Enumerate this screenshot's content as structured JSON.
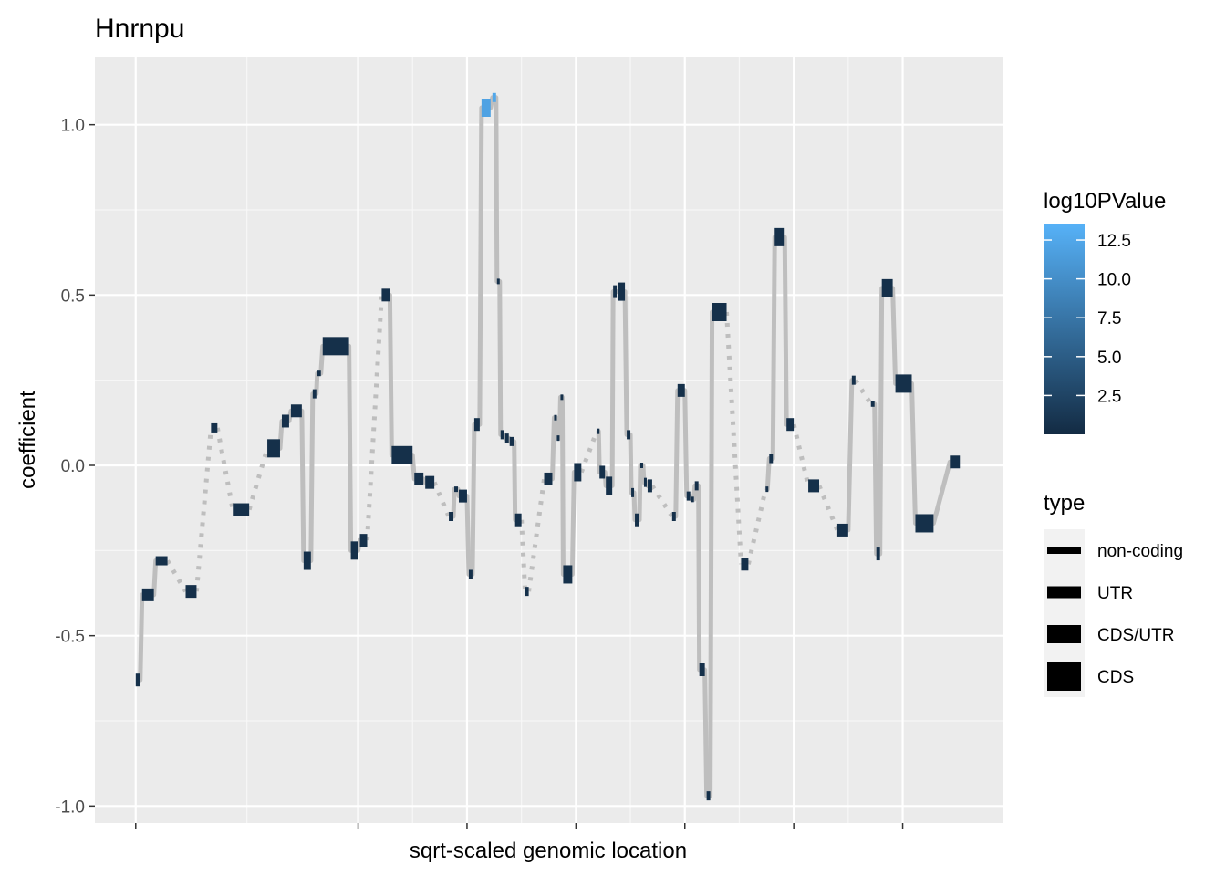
{
  "chart_data": {
    "type": "line",
    "title": "Hnrnpu",
    "xlabel": "sqrt-scaled genomic location",
    "ylabel": "coefficient",
    "ylim": [
      -1.05,
      1.2
    ],
    "y_ticks": [
      {
        "value": 1.0,
        "label": "1.0"
      },
      {
        "value": 0.5,
        "label": "0.5"
      },
      {
        "value": 0.0,
        "label": "0.0"
      },
      {
        "value": -0.5,
        "label": "-0.5"
      },
      {
        "value": -1.0,
        "label": "-1.0"
      }
    ],
    "x_range": [
      0,
      1
    ],
    "x_ticks_unlabeled": [
      0.045,
      0.29,
      0.41,
      0.53,
      0.65,
      0.77,
      0.89
    ],
    "grid": true,
    "colors": {
      "panel_background": "#ebebeb",
      "grid": "#ffffff",
      "connector": "#bebebe",
      "low_pvalue": "#132b43",
      "high_pvalue": "#56b1f7"
    },
    "legend_color": {
      "title": "log10PValue",
      "placement": "right",
      "min": 0,
      "max": 13.5,
      "ticks": [
        {
          "value": 12.5,
          "label": "12.5"
        },
        {
          "value": 10.0,
          "label": "10.0"
        },
        {
          "value": 7.5,
          "label": "7.5"
        },
        {
          "value": 5.0,
          "label": "5.0"
        },
        {
          "value": 2.5,
          "label": "2.5"
        }
      ]
    },
    "legend_type": {
      "title": "type",
      "placement": "right",
      "entries": [
        {
          "label": "non-coding",
          "weight": 0.35
        },
        {
          "label": "UTR",
          "weight": 0.55
        },
        {
          "label": "CDS/UTR",
          "weight": 0.75
        },
        {
          "label": "CDS",
          "weight": 1.0
        }
      ]
    },
    "segments": [
      {
        "x0": 0.045,
        "x1": 0.05,
        "y": -0.63,
        "p": 0.5,
        "type": "CDS/UTR",
        "link": "solid"
      },
      {
        "x0": 0.052,
        "x1": 0.065,
        "y": -0.38,
        "p": 0.5,
        "type": "CDS/UTR",
        "link": "solid"
      },
      {
        "x0": 0.067,
        "x1": 0.08,
        "y": -0.28,
        "p": 0.5,
        "type": "UTR",
        "link": "dotted"
      },
      {
        "x0": 0.1,
        "x1": 0.112,
        "y": -0.37,
        "p": 0.5,
        "type": "CDS/UTR",
        "link": "dotted"
      },
      {
        "x0": 0.128,
        "x1": 0.135,
        "y": 0.11,
        "p": 0.5,
        "type": "UTR",
        "link": "dotted"
      },
      {
        "x0": 0.152,
        "x1": 0.17,
        "y": -0.13,
        "p": 0.5,
        "type": "CDS/UTR",
        "link": "dotted"
      },
      {
        "x0": 0.19,
        "x1": 0.204,
        "y": 0.05,
        "p": 0.5,
        "type": "CDS",
        "link": "solid"
      },
      {
        "x0": 0.206,
        "x1": 0.214,
        "y": 0.13,
        "p": 0.5,
        "type": "CDS/UTR",
        "link": "solid"
      },
      {
        "x0": 0.216,
        "x1": 0.228,
        "y": 0.16,
        "p": 0.5,
        "type": "CDS/UTR",
        "link": "solid"
      },
      {
        "x0": 0.23,
        "x1": 0.238,
        "y": -0.28,
        "p": 0.5,
        "type": "CDS",
        "link": "solid"
      },
      {
        "x0": 0.24,
        "x1": 0.244,
        "y": 0.21,
        "p": 0.5,
        "type": "UTR",
        "link": "solid"
      },
      {
        "x0": 0.245,
        "x1": 0.249,
        "y": 0.27,
        "p": 0.5,
        "type": "non-coding",
        "link": "solid"
      },
      {
        "x0": 0.251,
        "x1": 0.28,
        "y": 0.35,
        "p": 0.5,
        "type": "CDS",
        "link": "solid"
      },
      {
        "x0": 0.282,
        "x1": 0.29,
        "y": -0.25,
        "p": 0.5,
        "type": "CDS",
        "link": "solid"
      },
      {
        "x0": 0.292,
        "x1": 0.3,
        "y": -0.22,
        "p": 0.5,
        "type": "CDS/UTR",
        "link": "dotted"
      },
      {
        "x0": 0.316,
        "x1": 0.325,
        "y": 0.5,
        "p": 0.5,
        "type": "CDS/UTR",
        "link": "solid"
      },
      {
        "x0": 0.327,
        "x1": 0.35,
        "y": 0.03,
        "p": 0.5,
        "type": "CDS",
        "link": "solid"
      },
      {
        "x0": 0.352,
        "x1": 0.362,
        "y": -0.04,
        "p": 0.5,
        "type": "CDS/UTR",
        "link": "solid"
      },
      {
        "x0": 0.364,
        "x1": 0.374,
        "y": -0.05,
        "p": 0.5,
        "type": "CDS/UTR",
        "link": "dotted"
      },
      {
        "x0": 0.39,
        "x1": 0.395,
        "y": -0.15,
        "p": 0.5,
        "type": "UTR",
        "link": "solid"
      },
      {
        "x0": 0.396,
        "x1": 0.4,
        "y": -0.07,
        "p": 0.5,
        "type": "non-coding",
        "link": "solid"
      },
      {
        "x0": 0.401,
        "x1": 0.41,
        "y": -0.09,
        "p": 0.5,
        "type": "CDS/UTR",
        "link": "solid"
      },
      {
        "x0": 0.412,
        "x1": 0.416,
        "y": -0.32,
        "p": 0.5,
        "type": "UTR",
        "link": "solid"
      },
      {
        "x0": 0.418,
        "x1": 0.424,
        "y": 0.12,
        "p": 0.5,
        "type": "CDS/UTR",
        "link": "solid"
      },
      {
        "x0": 0.426,
        "x1": 0.436,
        "y": 1.05,
        "p": 12.0,
        "type": "CDS",
        "link": "solid"
      },
      {
        "x0": 0.438,
        "x1": 0.442,
        "y": 1.08,
        "p": 12.5,
        "type": "UTR",
        "link": "solid"
      },
      {
        "x0": 0.443,
        "x1": 0.446,
        "y": 0.54,
        "p": 0.5,
        "type": "non-coding",
        "link": "solid"
      },
      {
        "x0": 0.447,
        "x1": 0.451,
        "y": 0.09,
        "p": 0.5,
        "type": "UTR",
        "link": "solid"
      },
      {
        "x0": 0.452,
        "x1": 0.456,
        "y": 0.08,
        "p": 0.5,
        "type": "UTR",
        "link": "solid"
      },
      {
        "x0": 0.457,
        "x1": 0.462,
        "y": 0.07,
        "p": 0.5,
        "type": "UTR",
        "link": "solid"
      },
      {
        "x0": 0.463,
        "x1": 0.47,
        "y": -0.16,
        "p": 0.5,
        "type": "CDS/UTR",
        "link": "dotted"
      },
      {
        "x0": 0.474,
        "x1": 0.478,
        "y": -0.37,
        "p": 0.5,
        "type": "UTR",
        "link": "dotted"
      },
      {
        "x0": 0.495,
        "x1": 0.504,
        "y": -0.04,
        "p": 0.5,
        "type": "CDS/UTR",
        "link": "solid"
      },
      {
        "x0": 0.506,
        "x1": 0.508,
        "y": 0.14,
        "p": 0.5,
        "type": "non-coding",
        "link": "solid"
      },
      {
        "x0": 0.509,
        "x1": 0.512,
        "y": 0.08,
        "p": 0.5,
        "type": "non-coding",
        "link": "solid"
      },
      {
        "x0": 0.513,
        "x1": 0.515,
        "y": 0.2,
        "p": 0.5,
        "type": "non-coding",
        "link": "solid"
      },
      {
        "x0": 0.516,
        "x1": 0.526,
        "y": -0.32,
        "p": 0.5,
        "type": "CDS",
        "link": "solid"
      },
      {
        "x0": 0.528,
        "x1": 0.536,
        "y": -0.02,
        "p": 0.5,
        "type": "CDS",
        "link": "dotted"
      },
      {
        "x0": 0.553,
        "x1": 0.555,
        "y": 0.1,
        "p": 0.5,
        "type": "non-coding",
        "link": "solid"
      },
      {
        "x0": 0.556,
        "x1": 0.562,
        "y": -0.02,
        "p": 0.5,
        "type": "CDS/UTR",
        "link": "solid"
      },
      {
        "x0": 0.563,
        "x1": 0.57,
        "y": -0.06,
        "p": 0.5,
        "type": "CDS",
        "link": "solid"
      },
      {
        "x0": 0.571,
        "x1": 0.575,
        "y": 0.51,
        "p": 0.5,
        "type": "CDS/UTR",
        "link": "solid"
      },
      {
        "x0": 0.576,
        "x1": 0.584,
        "y": 0.51,
        "p": 0.5,
        "type": "CDS",
        "link": "solid"
      },
      {
        "x0": 0.586,
        "x1": 0.59,
        "y": 0.09,
        "p": 0.5,
        "type": "UTR",
        "link": "solid"
      },
      {
        "x0": 0.591,
        "x1": 0.594,
        "y": -0.08,
        "p": 0.5,
        "type": "UTR",
        "link": "solid"
      },
      {
        "x0": 0.595,
        "x1": 0.6,
        "y": -0.16,
        "p": 0.5,
        "type": "CDS/UTR",
        "link": "solid"
      },
      {
        "x0": 0.601,
        "x1": 0.604,
        "y": 0.0,
        "p": 0.5,
        "type": "non-coding",
        "link": "solid"
      },
      {
        "x0": 0.605,
        "x1": 0.608,
        "y": -0.05,
        "p": 0.5,
        "type": "UTR",
        "link": "solid"
      },
      {
        "x0": 0.609,
        "x1": 0.614,
        "y": -0.06,
        "p": 0.5,
        "type": "CDS/UTR",
        "link": "dotted"
      },
      {
        "x0": 0.636,
        "x1": 0.64,
        "y": -0.15,
        "p": 0.5,
        "type": "UTR",
        "link": "solid"
      },
      {
        "x0": 0.642,
        "x1": 0.65,
        "y": 0.22,
        "p": 0.5,
        "type": "CDS/UTR",
        "link": "solid"
      },
      {
        "x0": 0.652,
        "x1": 0.656,
        "y": -0.09,
        "p": 0.5,
        "type": "UTR",
        "link": "solid"
      },
      {
        "x0": 0.657,
        "x1": 0.66,
        "y": -0.1,
        "p": 0.5,
        "type": "non-coding",
        "link": "solid"
      },
      {
        "x0": 0.661,
        "x1": 0.665,
        "y": -0.06,
        "p": 0.5,
        "type": "UTR",
        "link": "solid"
      },
      {
        "x0": 0.666,
        "x1": 0.672,
        "y": -0.6,
        "p": 0.5,
        "type": "CDS/UTR",
        "link": "solid"
      },
      {
        "x0": 0.674,
        "x1": 0.678,
        "y": -0.97,
        "p": 0.5,
        "type": "UTR",
        "link": "solid"
      },
      {
        "x0": 0.68,
        "x1": 0.696,
        "y": 0.45,
        "p": 0.5,
        "type": "CDS",
        "link": "dotted"
      },
      {
        "x0": 0.712,
        "x1": 0.72,
        "y": -0.29,
        "p": 0.5,
        "type": "CDS/UTR",
        "link": "dotted"
      },
      {
        "x0": 0.739,
        "x1": 0.741,
        "y": -0.07,
        "p": 0.5,
        "type": "non-coding",
        "link": "solid"
      },
      {
        "x0": 0.743,
        "x1": 0.747,
        "y": 0.02,
        "p": 0.5,
        "type": "UTR",
        "link": "solid"
      },
      {
        "x0": 0.749,
        "x1": 0.76,
        "y": 0.67,
        "p": 0.5,
        "type": "CDS",
        "link": "solid"
      },
      {
        "x0": 0.762,
        "x1": 0.77,
        "y": 0.12,
        "p": 0.5,
        "type": "CDS/UTR",
        "link": "dotted"
      },
      {
        "x0": 0.786,
        "x1": 0.798,
        "y": -0.06,
        "p": 0.5,
        "type": "CDS/UTR",
        "link": "dotted"
      },
      {
        "x0": 0.818,
        "x1": 0.83,
        "y": -0.19,
        "p": 0.5,
        "type": "CDS/UTR",
        "link": "solid"
      },
      {
        "x0": 0.834,
        "x1": 0.838,
        "y": 0.25,
        "p": 0.5,
        "type": "UTR",
        "link": "dotted"
      },
      {
        "x0": 0.855,
        "x1": 0.859,
        "y": 0.18,
        "p": 0.5,
        "type": "non-coding",
        "link": "solid"
      },
      {
        "x0": 0.861,
        "x1": 0.865,
        "y": -0.26,
        "p": 0.5,
        "type": "CDS/UTR",
        "link": "solid"
      },
      {
        "x0": 0.867,
        "x1": 0.879,
        "y": 0.52,
        "p": 0.5,
        "type": "CDS",
        "link": "solid"
      },
      {
        "x0": 0.882,
        "x1": 0.9,
        "y": 0.24,
        "p": 0.5,
        "type": "CDS",
        "link": "solid"
      },
      {
        "x0": 0.904,
        "x1": 0.924,
        "y": -0.17,
        "p": 0.5,
        "type": "CDS",
        "link": "solid"
      },
      {
        "x0": 0.942,
        "x1": 0.953,
        "y": 0.01,
        "p": 0.5,
        "type": "CDS/UTR",
        "link": "none"
      }
    ]
  }
}
